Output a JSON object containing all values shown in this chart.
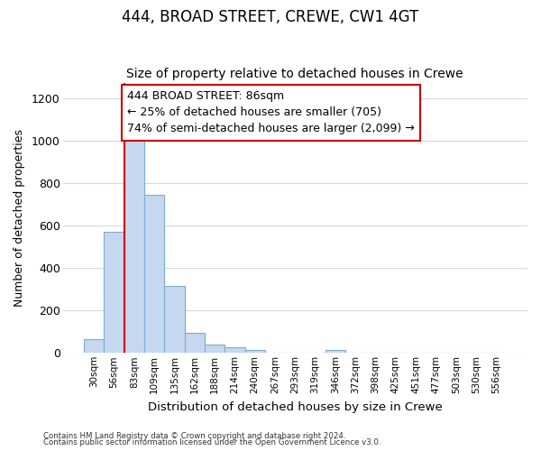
{
  "title1": "444, BROAD STREET, CREWE, CW1 4GT",
  "title2": "Size of property relative to detached houses in Crewe",
  "xlabel": "Distribution of detached houses by size in Crewe",
  "ylabel": "Number of detached properties",
  "categories": [
    "30sqm",
    "56sqm",
    "83sqm",
    "109sqm",
    "135sqm",
    "162sqm",
    "188sqm",
    "214sqm",
    "240sqm",
    "267sqm",
    "293sqm",
    "319sqm",
    "346sqm",
    "372sqm",
    "398sqm",
    "425sqm",
    "451sqm",
    "477sqm",
    "503sqm",
    "530sqm",
    "556sqm"
  ],
  "values": [
    65,
    570,
    1005,
    745,
    315,
    95,
    40,
    25,
    15,
    0,
    0,
    0,
    15,
    0,
    0,
    0,
    0,
    0,
    0,
    0,
    0
  ],
  "bar_color": "#c5d8f0",
  "bar_edge_color": "#7aadd4",
  "vline_color": "#cc0000",
  "annotation_text": "444 BROAD STREET: 86sqm\n← 25% of detached houses are smaller (705)\n74% of semi-detached houses are larger (2,099) →",
  "annotation_box_color": "#ffffff",
  "annotation_box_edge": "#cc0000",
  "ylim": [
    0,
    1270
  ],
  "yticks": [
    0,
    200,
    400,
    600,
    800,
    1000,
    1200
  ],
  "footer1": "Contains HM Land Registry data © Crown copyright and database right 2024.",
  "footer2": "Contains public sector information licensed under the Open Government Licence v3.0.",
  "bg_color": "#ffffff",
  "plot_bg_color": "#ffffff",
  "grid_color": "#d0d8e8",
  "title1_fontsize": 12,
  "title2_fontsize": 10,
  "annotation_fontsize": 9,
  "vline_bar_index": 2
}
